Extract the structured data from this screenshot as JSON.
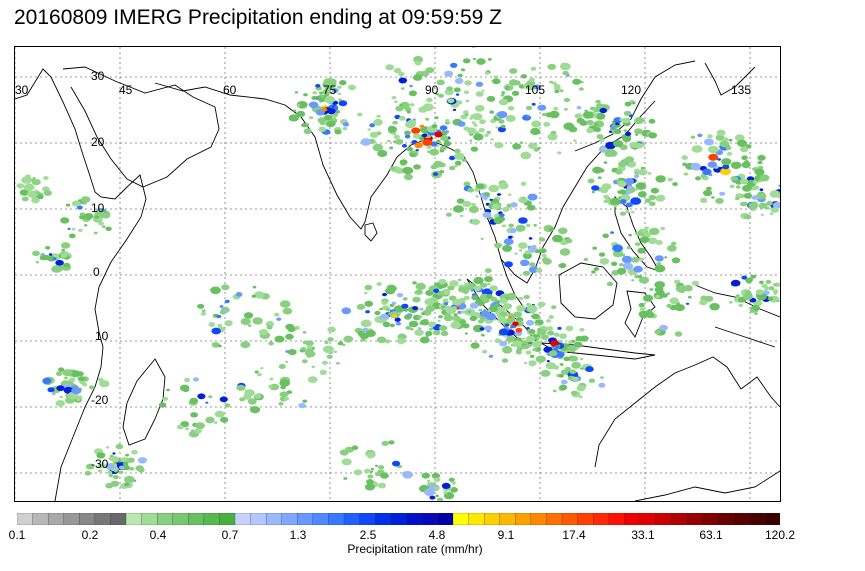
{
  "title": "20160809 IMERG Precipitation ending at 09:59:59 Z",
  "map": {
    "lon_labels": [
      "30",
      "45",
      "60",
      "75",
      "90",
      "105",
      "120",
      "135"
    ],
    "lat_labels": [
      "30",
      "20",
      "10",
      "0",
      "10",
      "-20",
      "-30"
    ],
    "lon_range": [
      30,
      142
    ],
    "lat_range": [
      -38,
      36
    ]
  },
  "colorbar": {
    "title": "Precipitation rate (mm/hr)",
    "tick_labels": [
      "0.1",
      "0.2",
      "0.4",
      "0.7",
      "1.3",
      "2.5",
      "4.8",
      "9.1",
      "17.4",
      "33.1",
      "63.1",
      "120.2"
    ],
    "colors": [
      "#d0d0d0",
      "#b8b8b8",
      "#a8a8a8",
      "#989898",
      "#888888",
      "#787878",
      "#686868",
      "#b8e8b0",
      "#a0dc98",
      "#88d080",
      "#78c870",
      "#68c060",
      "#58b850",
      "#48b040",
      "#c8d0ff",
      "#b0c8ff",
      "#98b8ff",
      "#80a8ff",
      "#6898ff",
      "#5088ff",
      "#3878ff",
      "#2060ff",
      "#1048f8",
      "#0030e8",
      "#0020d8",
      "#0010c8",
      "#0808b8",
      "#0000a8",
      "#ffff00",
      "#ffe800",
      "#ffd000",
      "#ffb800",
      "#ffa000",
      "#ff8800",
      "#ff7000",
      "#ff5800",
      "#ff4000",
      "#ff2800",
      "#ff1000",
      "#f00000",
      "#e00000",
      "#c80000",
      "#b00000",
      "#980000",
      "#800000",
      "#680000",
      "#580000",
      "#480000",
      "#380000"
    ]
  }
}
